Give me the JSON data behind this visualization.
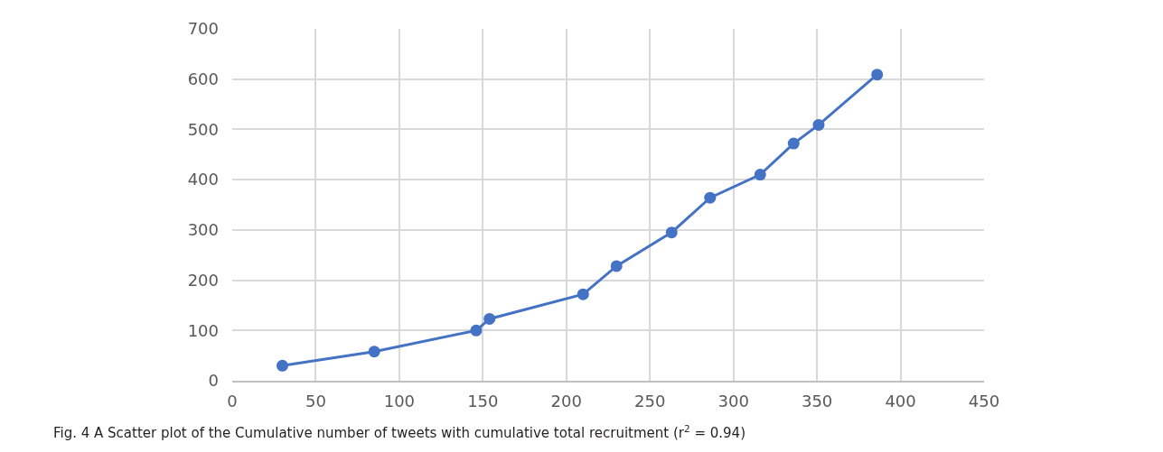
{
  "chart_data": {
    "type": "line",
    "x": [
      30,
      85,
      146,
      154,
      210,
      230,
      263,
      286,
      316,
      336,
      351,
      386
    ],
    "series": [
      {
        "color": "#4472c4",
        "values": [
          30,
          58,
          100,
          123,
          172,
          228,
          295,
          364,
          410,
          472,
          509,
          609
        ]
      }
    ],
    "xlim": [
      0,
      450
    ],
    "xticks": [
      0,
      50,
      100,
      150,
      200,
      250,
      300,
      350,
      400,
      450
    ],
    "ylim": [
      0,
      700
    ],
    "yticks": [
      0,
      100,
      200,
      300,
      400,
      500,
      600,
      700
    ],
    "grid": true,
    "marker": "circle",
    "line_style": "solid",
    "annotations": [
      "Fig. 4 A Scatter plot of the Cumulative number of tweets with cumulative total recruitment (r$^{2}$ = 0.94)"
    ]
  }
}
